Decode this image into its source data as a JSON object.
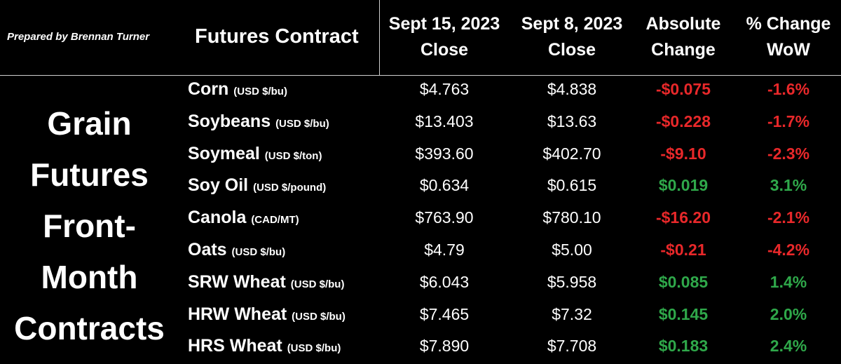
{
  "credit": "Prepared by Brennan Turner",
  "headers": {
    "contract": "Futures Contract",
    "col1_line1": "Sept 15, 2023",
    "col1_line2": "Close",
    "col2_line1": "Sept 8, 2023",
    "col2_line2": "Close",
    "col3_line1": "Absolute",
    "col3_line2": "Change",
    "col4_line1": "% Change",
    "col4_line2": "WoW"
  },
  "side_title": [
    "Grain",
    "Futures",
    "Front-",
    "Month",
    "Contracts"
  ],
  "colors": {
    "negative": "#e8282a",
    "positive": "#2fa84a",
    "background": "#000000",
    "text": "#ffffff"
  },
  "rows": [
    {
      "name": "Corn",
      "unit": "(USD $/bu)",
      "close_sep15": "$4.763",
      "close_sep8": "$4.838",
      "abs_change": "-$0.075",
      "pct_change": "-1.6%",
      "direction": "neg"
    },
    {
      "name": "Soybeans",
      "unit": "(USD $/bu)",
      "close_sep15": "$13.403",
      "close_sep8": "$13.63",
      "abs_change": "-$0.228",
      "pct_change": "-1.7%",
      "direction": "neg"
    },
    {
      "name": "Soymeal",
      "unit": "(USD $/ton)",
      "close_sep15": "$393.60",
      "close_sep8": "$402.70",
      "abs_change": "-$9.10",
      "pct_change": "-2.3%",
      "direction": "neg"
    },
    {
      "name": "Soy Oil",
      "unit": "(USD $/pound)",
      "close_sep15": "$0.634",
      "close_sep8": "$0.615",
      "abs_change": "$0.019",
      "pct_change": "3.1%",
      "direction": "pos"
    },
    {
      "name": "Canola",
      "unit": "(CAD/MT)",
      "close_sep15": "$763.90",
      "close_sep8": "$780.10",
      "abs_change": "-$16.20",
      "pct_change": "-2.1%",
      "direction": "neg"
    },
    {
      "name": "Oats",
      "unit": "(USD $/bu)",
      "close_sep15": "$4.79",
      "close_sep8": "$5.00",
      "abs_change": "-$0.21",
      "pct_change": "-4.2%",
      "direction": "neg"
    },
    {
      "name": "SRW Wheat",
      "unit": "(USD $/bu)",
      "close_sep15": "$6.043",
      "close_sep8": "$5.958",
      "abs_change": "$0.085",
      "pct_change": "1.4%",
      "direction": "pos"
    },
    {
      "name": "HRW Wheat",
      "unit": "(USD $/bu)",
      "close_sep15": "$7.465",
      "close_sep8": "$7.32",
      "abs_change": "$0.145",
      "pct_change": "2.0%",
      "direction": "pos"
    },
    {
      "name": "HRS Wheat",
      "unit": "(USD $/bu)",
      "close_sep15": "$7.890",
      "close_sep8": "$7.708",
      "abs_change": "$0.183",
      "pct_change": "2.4%",
      "direction": "pos"
    }
  ]
}
